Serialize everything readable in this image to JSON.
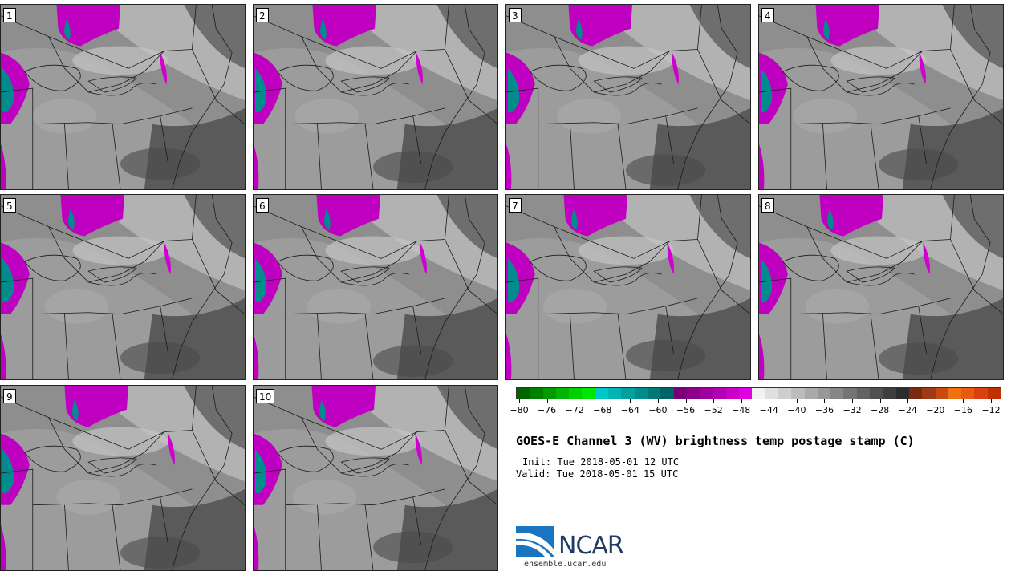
{
  "panels": [
    {
      "label": "1"
    },
    {
      "label": "2"
    },
    {
      "label": "3"
    },
    {
      "label": "4"
    },
    {
      "label": "5"
    },
    {
      "label": "6"
    },
    {
      "label": "7"
    },
    {
      "label": "8"
    },
    {
      "label": "9"
    },
    {
      "label": "10"
    }
  ],
  "colorbar": {
    "colors": [
      "#006400",
      "#008000",
      "#009a00",
      "#00b400",
      "#00d000",
      "#00e600",
      "#00c8c8",
      "#00b4b4",
      "#00a0a0",
      "#008c8c",
      "#007878",
      "#006464",
      "#7a007a",
      "#8c008c",
      "#a000a0",
      "#b400b4",
      "#c800c8",
      "#e000e0",
      "#f2f2f2",
      "#e0e0e0",
      "#cecece",
      "#bcbcbc",
      "#aaaaaa",
      "#989898",
      "#868686",
      "#747474",
      "#626262",
      "#505050",
      "#3e3e3e",
      "#2c2c2c",
      "#7a2a10",
      "#a03a14",
      "#c84a10",
      "#f07010",
      "#e85a10",
      "#d84010",
      "#c03000"
    ],
    "ticks": [
      "−80",
      "−76",
      "−72",
      "−68",
      "−64",
      "−60",
      "−56",
      "−52",
      "−48",
      "−44",
      "−40",
      "−36",
      "−32",
      "−28",
      "−24",
      "−20",
      "−16",
      "−12"
    ]
  },
  "title": "GOES-E Channel 3 (WV) brightness temp postage stamp (C)",
  "init": "Init: Tue 2018-05-01 12 UTC",
  "valid": "Valid: Tue 2018-05-01 15 UTC",
  "logo": {
    "name": "NCAR",
    "url": "ensemble.ucar.edu"
  }
}
